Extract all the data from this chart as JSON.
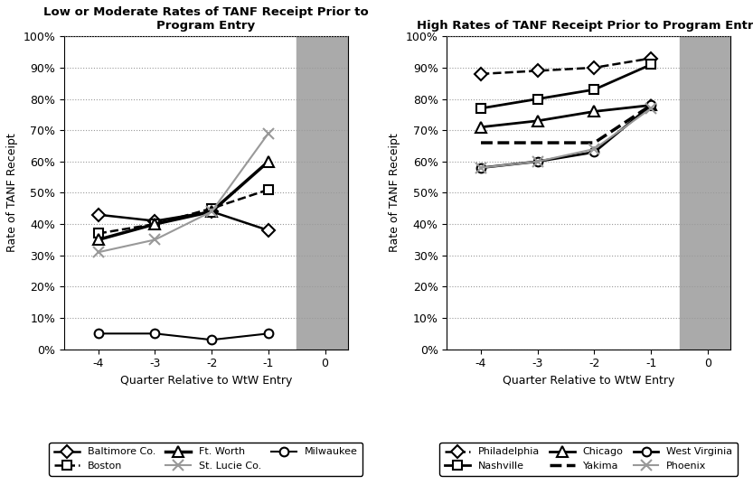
{
  "left_title": "Low or Moderate Rates of TANF Receipt Prior to\nProgram Entry",
  "right_title": "High Rates of TANF Receipt Prior to Program Entry",
  "xlabel": "Quarter Relative to WtW Entry",
  "ylabel": "Rate of TANF Receipt",
  "x_values": [
    -4,
    -3,
    -2,
    -1
  ],
  "left_series": [
    {
      "label": "Baltimore Co.",
      "values": [
        0.43,
        0.41,
        0.44,
        0.38
      ],
      "color": "#000000",
      "linestyle": "-",
      "marker": "D",
      "linewidth": 1.8,
      "markersize": 7
    },
    {
      "label": "Boston",
      "values": [
        0.37,
        0.4,
        0.45,
        0.51
      ],
      "color": "#000000",
      "linestyle": "--",
      "marker": "s",
      "linewidth": 1.8,
      "markersize": 7
    },
    {
      "label": "Ft. Worth",
      "values": [
        0.35,
        0.4,
        0.44,
        0.6
      ],
      "color": "#000000",
      "linestyle": "-",
      "marker": "^",
      "linewidth": 2.5,
      "markersize": 8
    },
    {
      "label": "St. Lucie Co.",
      "values": [
        0.31,
        0.35,
        0.44,
        0.69
      ],
      "color": "#999999",
      "linestyle": "-",
      "marker": "x",
      "linewidth": 1.5,
      "markersize": 8
    },
    {
      "label": "Milwaukee",
      "values": [
        0.05,
        0.05,
        0.03,
        0.05
      ],
      "color": "#000000",
      "linestyle": "-",
      "marker": "o",
      "linewidth": 1.5,
      "markersize": 7
    }
  ],
  "right_series": [
    {
      "label": "Philadelphia",
      "values": [
        0.88,
        0.89,
        0.9,
        0.93
      ],
      "color": "#000000",
      "linestyle": "--",
      "marker": "D",
      "linewidth": 1.8,
      "markersize": 7
    },
    {
      "label": "Nashville",
      "values": [
        0.77,
        0.8,
        0.83,
        0.91
      ],
      "color": "#000000",
      "linestyle": "-",
      "marker": "s",
      "linewidth": 2.0,
      "markersize": 7
    },
    {
      "label": "Chicago",
      "values": [
        0.71,
        0.73,
        0.76,
        0.78
      ],
      "color": "#000000",
      "linestyle": "-",
      "marker": "^",
      "linewidth": 2.0,
      "markersize": 8
    },
    {
      "label": "Yakima",
      "values": [
        0.66,
        0.66,
        0.66,
        0.78
      ],
      "color": "#000000",
      "linestyle": "--",
      "marker": null,
      "linewidth": 2.5,
      "markersize": 6
    },
    {
      "label": "West Virginia",
      "values": [
        0.58,
        0.6,
        0.63,
        0.78
      ],
      "color": "#000000",
      "linestyle": "-",
      "marker": "o",
      "linewidth": 2.0,
      "markersize": 7
    },
    {
      "label": "Phoenix",
      "values": [
        0.58,
        0.6,
        0.64,
        0.77
      ],
      "color": "#999999",
      "linestyle": "-",
      "marker": "x",
      "linewidth": 1.5,
      "markersize": 8
    }
  ],
  "gray_shade": "#aaaaaa",
  "background": "#ffffff",
  "ylim": [
    0,
    1.0
  ],
  "yticks": [
    0,
    0.1,
    0.2,
    0.3,
    0.4,
    0.5,
    0.6,
    0.7,
    0.8,
    0.9,
    1.0
  ],
  "left_legend_order": [
    0,
    1,
    2,
    3,
    4
  ],
  "right_legend_order": [
    0,
    1,
    2,
    3,
    4,
    5
  ]
}
